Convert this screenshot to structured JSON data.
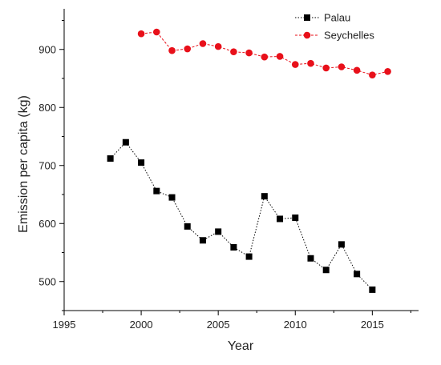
{
  "chart_data": {
    "type": "line",
    "title": "",
    "xlabel": "Year",
    "ylabel": "Emission per capita (kg)",
    "xlim": [
      1995,
      2018
    ],
    "ylim": [
      450,
      970
    ],
    "xticks": [
      1995,
      2000,
      2005,
      2010,
      2015
    ],
    "yticks": [
      500,
      600,
      700,
      800,
      900
    ],
    "grid": false,
    "legend_position": "top-right",
    "series": [
      {
        "name": "Palau",
        "color": "#000000",
        "marker": "square",
        "line_style": "dotted",
        "x": [
          1998,
          1999,
          2000,
          2001,
          2002,
          2003,
          2004,
          2005,
          2006,
          2007,
          2008,
          2009,
          2010,
          2011,
          2012,
          2013,
          2014,
          2015
        ],
        "y": [
          712,
          740,
          705,
          656,
          645,
          595,
          571,
          586,
          559,
          543,
          647,
          608,
          610,
          540,
          520,
          564,
          513,
          486
        ]
      },
      {
        "name": "Seychelles",
        "color": "#e8101a",
        "marker": "circle",
        "line_style": "dashed",
        "x": [
          2000,
          2001,
          2002,
          2003,
          2004,
          2005,
          2006,
          2007,
          2008,
          2009,
          2010,
          2011,
          2012,
          2013,
          2014,
          2015,
          2016
        ],
        "y": [
          927,
          930,
          898,
          901,
          910,
          905,
          896,
          894,
          887,
          888,
          874,
          876,
          868,
          870,
          864,
          856,
          862
        ]
      }
    ]
  }
}
